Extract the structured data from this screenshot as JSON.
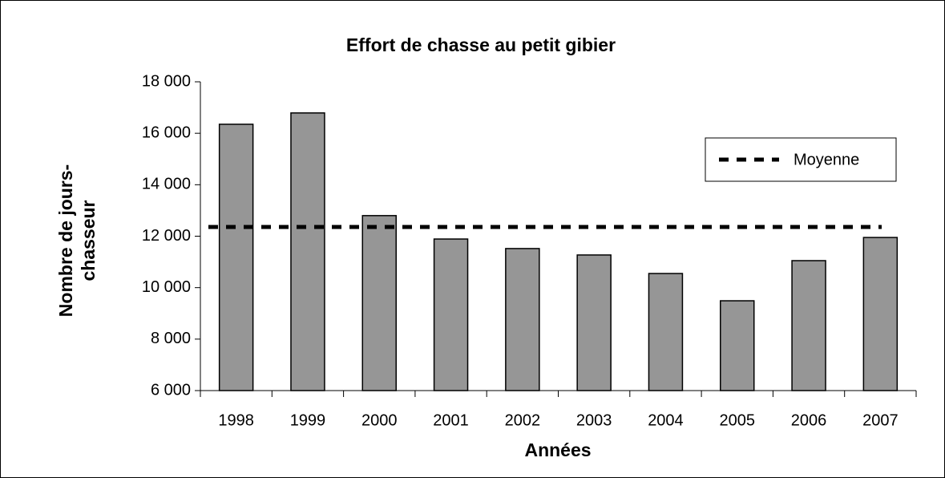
{
  "chart_data": {
    "type": "bar",
    "title": "Effort de chasse au petit gibier",
    "xlabel": "Années",
    "ylabel": [
      "Nombre de jours-",
      "chasseur"
    ],
    "categories": [
      "1998",
      "1999",
      "2000",
      "2001",
      "2002",
      "2003",
      "2004",
      "2005",
      "2006",
      "2007"
    ],
    "values": [
      16350,
      16790,
      12800,
      11890,
      11520,
      11270,
      10550,
      9490,
      11050,
      11950
    ],
    "color": "#969696",
    "average": {
      "name": "Moyenne",
      "value": 12360,
      "color": "#000000"
    },
    "ylim": [
      6000,
      18000
    ],
    "yticks": [
      {
        "value": 6000,
        "label": "6 000"
      },
      {
        "value": 8000,
        "label": "8 000"
      },
      {
        "value": 10000,
        "label": "10 000"
      },
      {
        "value": 12000,
        "label": "12 000"
      },
      {
        "value": 14000,
        "label": "14 000"
      },
      {
        "value": 16000,
        "label": "16 000"
      },
      {
        "value": 18000,
        "label": "18 000"
      }
    ],
    "grid": false,
    "legend": "upper right"
  }
}
